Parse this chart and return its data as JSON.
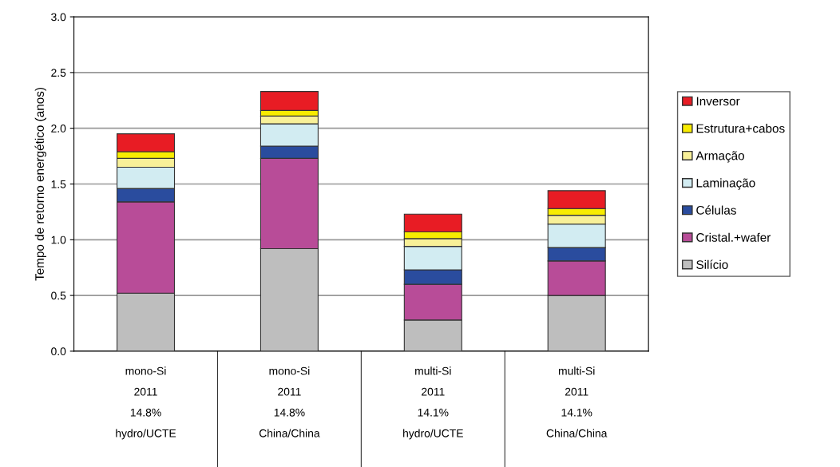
{
  "chart_data": {
    "type": "bar",
    "stacked": true,
    "ylabel": "Tempo de retorno energético (anos)",
    "categories": [
      "mono-Si\n2011\n14.8%\nhydro/UCTE",
      "mono-Si\n2011\n14.8%\nChina/China",
      "multi-Si\n2011\n14.1%\nhydro/UCTE",
      "multi-Si\n2011\n14.1%\nChina/China"
    ],
    "series": [
      {
        "name": "Silício",
        "color": "#bebebe",
        "values": [
          0.52,
          0.92,
          0.28,
          0.5
        ]
      },
      {
        "name": "Cristal.+wafer",
        "color": "#b84c98",
        "values": [
          0.82,
          0.81,
          0.32,
          0.31
        ]
      },
      {
        "name": "Células",
        "color": "#2a4c9e",
        "values": [
          0.12,
          0.11,
          0.13,
          0.12
        ]
      },
      {
        "name": "Laminação",
        "color": "#d2ecf2",
        "values": [
          0.19,
          0.2,
          0.21,
          0.21
        ]
      },
      {
        "name": "Armação",
        "color": "#f8f098",
        "values": [
          0.08,
          0.07,
          0.07,
          0.08
        ]
      },
      {
        "name": "Estrutura+cabos",
        "color": "#f8ec00",
        "values": [
          0.06,
          0.05,
          0.06,
          0.06
        ]
      },
      {
        "name": "Inversor",
        "color": "#e81c24",
        "values": [
          0.16,
          0.17,
          0.16,
          0.16
        ]
      }
    ],
    "ylim": [
      0,
      3
    ],
    "yticks": [
      {
        "value": 0,
        "label": "0.0"
      },
      {
        "value": 0.5,
        "label": "0.5"
      },
      {
        "value": 1,
        "label": "1.0"
      },
      {
        "value": 1.5,
        "label": "1.5"
      },
      {
        "value": 2,
        "label": "2.0"
      },
      {
        "value": 2.5,
        "label": "2.5"
      },
      {
        "value": 3,
        "label": "3.0"
      }
    ],
    "grid": "y",
    "legend": "right"
  }
}
